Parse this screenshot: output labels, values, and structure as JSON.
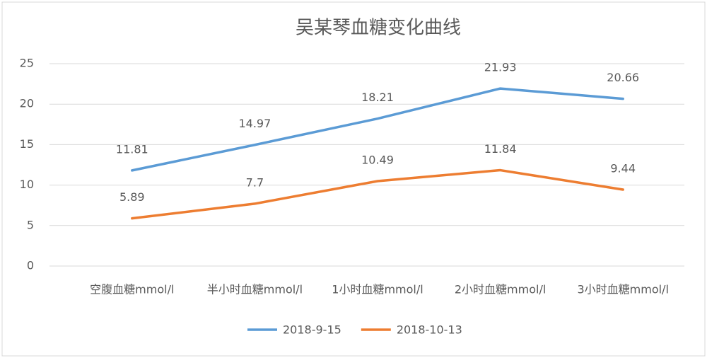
{
  "chart_data": {
    "type": "line",
    "title": "吴某琴血糖变化曲线",
    "categories": [
      "空腹血糖mmol/l",
      "半小时血糖mmol/l",
      "1小时血糖mmol/l",
      "2小时血糖mmol/l",
      "3小时血糖mmol/l"
    ],
    "series": [
      {
        "name": "2018-9-15",
        "color": "#5b9bd5",
        "values": [
          11.81,
          14.97,
          18.21,
          21.93,
          20.66
        ]
      },
      {
        "name": "2018-10-13",
        "color": "#ed7d31",
        "values": [
          5.89,
          7.7,
          10.49,
          11.84,
          9.44
        ]
      }
    ],
    "ylim": [
      0,
      25
    ],
    "yticks": [
      0,
      5,
      10,
      15,
      20,
      25
    ],
    "grid": true,
    "legend": "bottom"
  }
}
